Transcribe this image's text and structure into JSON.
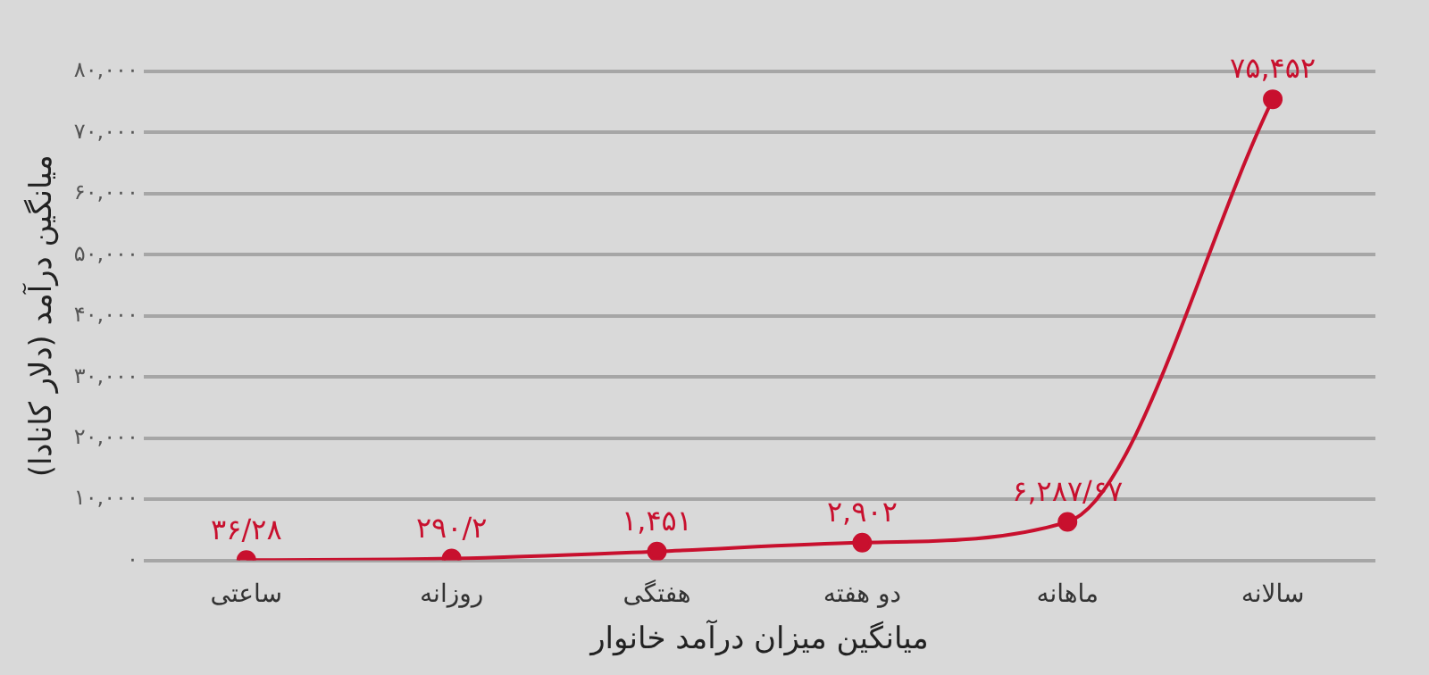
{
  "chart_data": {
    "type": "line",
    "xlabel": "میانگین میزان درآمد خانوار",
    "ylabel": "میانگین درآمد (دلار کانادا)",
    "categories": [
      "ساعتی",
      "روزانه",
      "هفتگی",
      "دو هفته",
      "ماهانه",
      "سالانه"
    ],
    "series": [
      {
        "color": "#c8102e",
        "values": [
          36.28,
          290.2,
          1451,
          2902,
          6287.67,
          75452
        ],
        "value_labels": [
          "۳۶/۲۸",
          "۲۹۰/۲",
          "۱,۴۵۱",
          "۲,۹۰۲",
          "۶,۲۸۷/۶۷",
          "۷۵,۴۵۲"
        ]
      }
    ],
    "ylim": [
      0,
      80000
    ],
    "yticks": [
      {
        "value": 0,
        "label": "۰"
      },
      {
        "value": 10000,
        "label": "۱۰,۰۰۰"
      },
      {
        "value": 20000,
        "label": "۲۰,۰۰۰"
      },
      {
        "value": 30000,
        "label": "۳۰,۰۰۰"
      },
      {
        "value": 40000,
        "label": "۴۰,۰۰۰"
      },
      {
        "value": 50000,
        "label": "۵۰,۰۰۰"
      },
      {
        "value": 60000,
        "label": "۶۰,۰۰۰"
      },
      {
        "value": 70000,
        "label": "۷۰,۰۰۰"
      },
      {
        "value": 80000,
        "label": "۸۰,۰۰۰"
      }
    ],
    "grid": "y",
    "legend": false,
    "marker": "circle",
    "line_style": "solid"
  }
}
